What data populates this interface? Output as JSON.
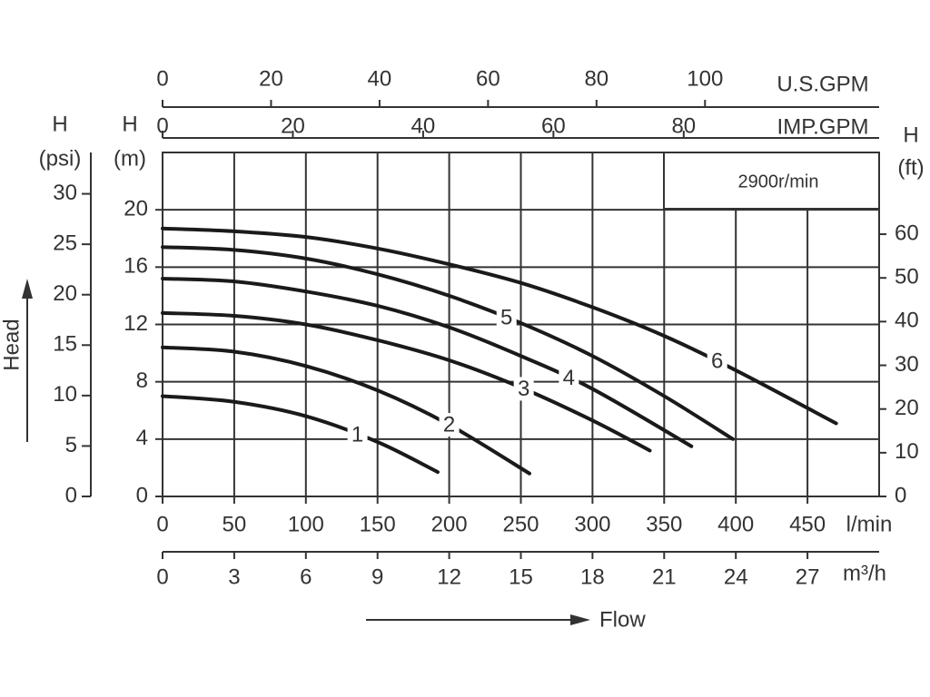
{
  "chart_data": {
    "type": "line",
    "speed_label": "2900r/min",
    "y_title": "Head",
    "x_title": "Flow",
    "xlim": [
      0,
      500
    ],
    "xticks": [
      0,
      50,
      100,
      150,
      200,
      250,
      300,
      350,
      400,
      450
    ],
    "x_unit": "l/min",
    "ylim": [
      0,
      24
    ],
    "yticks": [
      0,
      4,
      8,
      12,
      16,
      20
    ],
    "y_label": "H",
    "y_unit": "(m)",
    "grid": true,
    "psi_axis": {
      "label": "H",
      "unit": "(psi)",
      "lim": [
        0,
        34.1
      ],
      "ticks": [
        0,
        5,
        10,
        15,
        20,
        25,
        30
      ]
    },
    "ft_axis": {
      "label": "H",
      "unit": "(ft)",
      "lim": [
        0,
        78.7
      ],
      "ticks": [
        0,
        10,
        20,
        30,
        40,
        50,
        60
      ]
    },
    "usgpm_axis": {
      "unit": "U.S.GPM",
      "lim": [
        0,
        132.1
      ],
      "ticks": [
        0,
        20,
        40,
        60,
        80,
        100
      ]
    },
    "impgpm_axis": {
      "unit": "IMP.GPM",
      "lim": [
        0,
        110
      ],
      "ticks": [
        0,
        20,
        40,
        60,
        80
      ]
    },
    "m3h_axis": {
      "unit": "m³/h",
      "lim": [
        0,
        30
      ],
      "ticks": [
        0,
        3,
        6,
        9,
        12,
        15,
        18,
        21,
        24,
        27
      ]
    },
    "series": [
      {
        "name": "1",
        "color": "#1a1a1a",
        "x": [
          0,
          50,
          100,
          150,
          192
        ],
        "values": [
          7.0,
          6.6,
          5.6,
          3.8,
          1.7
        ]
      },
      {
        "name": "2",
        "color": "#1a1a1a",
        "x": [
          0,
          50,
          100,
          150,
          200,
          256
        ],
        "values": [
          10.4,
          10.1,
          9.1,
          7.4,
          5.0,
          1.6
        ]
      },
      {
        "name": "3",
        "color": "#1a1a1a",
        "x": [
          0,
          50,
          100,
          150,
          200,
          250,
          300,
          340
        ],
        "values": [
          12.8,
          12.6,
          12.0,
          10.9,
          9.5,
          7.6,
          5.3,
          3.2
        ]
      },
      {
        "name": "4",
        "color": "#1a1a1a",
        "x": [
          0,
          50,
          100,
          150,
          200,
          250,
          300,
          369
        ],
        "values": [
          15.2,
          15.0,
          14.3,
          13.3,
          11.8,
          9.8,
          7.5,
          3.5
        ]
      },
      {
        "name": "5",
        "color": "#1a1a1a",
        "x": [
          0,
          50,
          100,
          150,
          200,
          250,
          300,
          350,
          398
        ],
        "values": [
          17.4,
          17.2,
          16.6,
          15.5,
          14.0,
          12.1,
          9.8,
          7.0,
          4.0
        ]
      },
      {
        "name": "6",
        "color": "#1a1a1a",
        "x": [
          0,
          50,
          100,
          150,
          200,
          250,
          300,
          350,
          400,
          470
        ],
        "values": [
          18.7,
          18.5,
          18.1,
          17.3,
          16.2,
          14.9,
          13.2,
          11.2,
          8.8,
          5.1
        ]
      }
    ]
  }
}
